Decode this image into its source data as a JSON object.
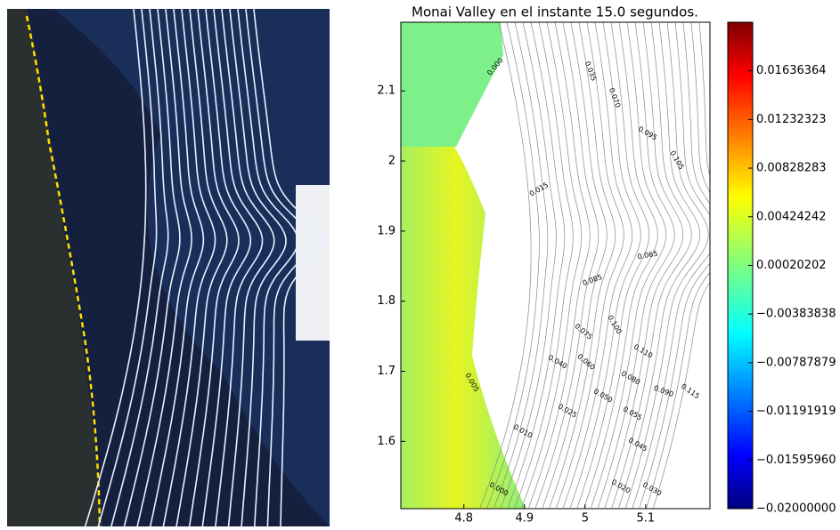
{
  "chart_data": {
    "type": "contour",
    "title": "Monai Valley en el instante 15.0 segundos.",
    "xlim": [
      4.696,
      5.206
    ],
    "xticks": [
      4.8,
      4.9,
      5.0,
      5.1
    ],
    "ylim": [
      1.504,
      2.198
    ],
    "yticks": [
      1.6,
      1.7,
      1.8,
      1.9,
      2.0,
      2.1
    ],
    "colorbar": {
      "colormap": "jet",
      "lim": [
        -0.02,
        0.0204
      ],
      "ticks": [
        {
          "value": 0.01636364,
          "label": "0.01636364"
        },
        {
          "value": 0.01232323,
          "label": "0.01232323"
        },
        {
          "value": 0.00828283,
          "label": "0.00828283"
        },
        {
          "value": 0.00424242,
          "label": "0.00424242"
        },
        {
          "value": 0.00020202,
          "label": "0.00020202"
        },
        {
          "value": -0.00383838,
          "label": "−0.00383838"
        },
        {
          "value": -0.00787879,
          "label": "−0.00787879"
        },
        {
          "value": -0.01191919,
          "label": "−0.01191919"
        },
        {
          "value": -0.0159596,
          "label": "−0.01595960"
        },
        {
          "value": -0.02,
          "label": "−0.02000000"
        }
      ]
    },
    "contour_labels": [
      "0.000",
      "0.035",
      "0.070",
      "0.095",
      "0.105",
      "0.015",
      "0.065",
      "0.085",
      "0.100",
      "0.075",
      "0.110",
      "0.040",
      "0.060",
      "0.080",
      "0.005",
      "0.090",
      "0.115",
      "0.050",
      "0.025",
      "0.055",
      "0.010",
      "0.045",
      "0.020",
      "0.030",
      "0.000"
    ]
  }
}
